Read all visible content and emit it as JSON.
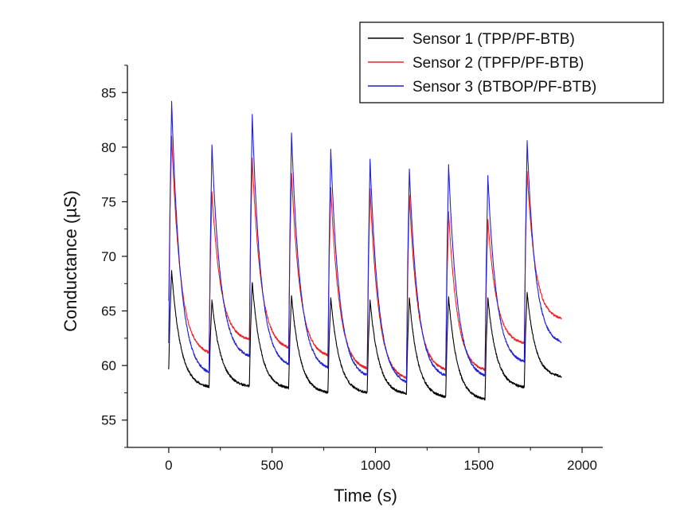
{
  "chart_data": {
    "type": "line",
    "title": "",
    "xlabel": "Time (s)",
    "ylabel": "Conductance (µS)",
    "xlim": [
      -200,
      2100
    ],
    "ylim": [
      52.5,
      87.5
    ],
    "x_ticks": [
      0,
      500,
      1000,
      1500,
      2000
    ],
    "y_ticks": [
      55,
      60,
      65,
      70,
      75,
      80,
      85
    ],
    "grid": false,
    "legend_position": "top-right",
    "pulse_starts": [
      0,
      195,
      390,
      580,
      770,
      960,
      1150,
      1340,
      1530,
      1720
    ],
    "series": [
      {
        "name": "Sensor 1 (TPP/PF-BTB)",
        "color": "#000000",
        "start_value": 59.7,
        "peaks": [
          68.7,
          66.0,
          67.6,
          66.4,
          66.2,
          66.0,
          66.2,
          66.3,
          66.2,
          66.7
        ],
        "troughs": [
          57.9,
          58.0,
          57.8,
          57.4,
          57.4,
          57.3,
          57.0,
          56.8,
          57.9,
          58.9
        ],
        "end_value": 58.9,
        "end_time": 1900
      },
      {
        "name": "Sensor 2 (TPFP/PF-BTB)",
        "color": "#e8262a",
        "start_value": 66.0,
        "peaks": [
          81.0,
          75.9,
          79.0,
          77.6,
          76.3,
          76.2,
          75.6,
          74.1,
          73.4,
          77.8
        ],
        "troughs": [
          60.9,
          62.2,
          61.4,
          60.7,
          59.5,
          58.6,
          59.4,
          59.4,
          61.9,
          64.1
        ],
        "end_value": 64.1,
        "end_time": 1900
      },
      {
        "name": "Sensor 3 (BTBOP/PF-BTB)",
        "color": "#2222cc",
        "start_value": 62.1,
        "peaks": [
          84.2,
          80.2,
          83.0,
          81.3,
          79.8,
          78.9,
          78.0,
          78.4,
          77.4,
          80.6
        ],
        "troughs": [
          59.0,
          60.6,
          59.8,
          59.5,
          58.8,
          58.2,
          58.8,
          58.8,
          60.1,
          61.9
        ],
        "end_value": 61.9,
        "end_time": 1900
      }
    ]
  }
}
